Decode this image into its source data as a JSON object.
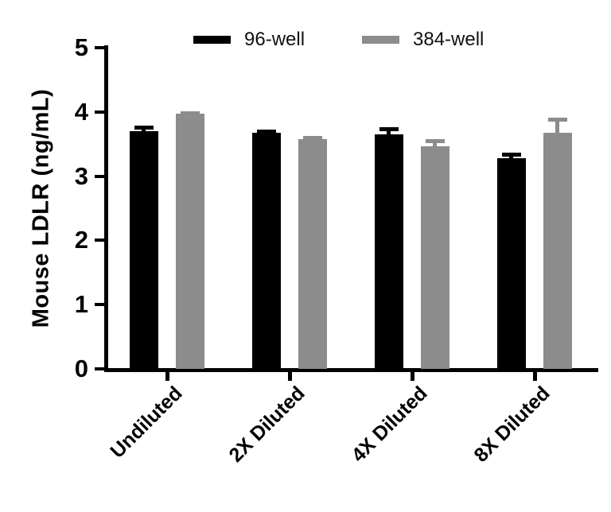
{
  "chart_data": {
    "type": "bar",
    "title": "",
    "ylabel": "Mouse LDLR (ng/mL)",
    "xlabel": "",
    "ylim": [
      0,
      5
    ],
    "yticks": [
      0,
      1,
      2,
      3,
      4,
      5
    ],
    "categories": [
      "Undiluted",
      "2X Diluted",
      "4X Diluted",
      "8X Diluted"
    ],
    "series": [
      {
        "name": "96-well",
        "color": "#000000",
        "values": [
          3.7,
          3.68,
          3.65,
          3.28
        ],
        "errors": [
          0.09,
          0.05,
          0.11,
          0.09
        ]
      },
      {
        "name": "384-well",
        "color": "#8c8c8c",
        "values": [
          3.97,
          3.58,
          3.46,
          3.68
        ],
        "errors": [
          0.04,
          0.05,
          0.12,
          0.23
        ]
      }
    ],
    "error_bars": "upper_only",
    "legend_position": "top-center",
    "grid": false,
    "background": "#ffffff"
  }
}
